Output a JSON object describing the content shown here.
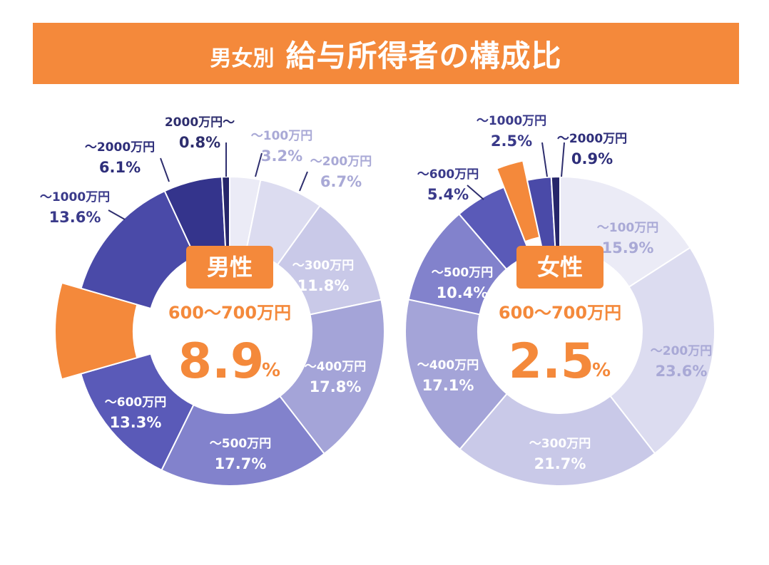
{
  "header": {
    "prefix": "男女別",
    "title": "給与所得者の構成比"
  },
  "colors": {
    "accent": "#f4893b"
  },
  "chart_data": [
    {
      "type": "pie",
      "center_label": "男性",
      "highlight_category": "600〜700万円",
      "highlight_value": "8.9",
      "highlight_unit": "%",
      "categories": [
        "〜100万円",
        "〜200万円",
        "〜300万円",
        "〜400万円",
        "〜500万円",
        "〜600万円",
        "600〜700万円",
        "〜1000万円",
        "〜2000万円",
        "2000万円〜"
      ],
      "values": [
        3.2,
        6.7,
        11.8,
        17.8,
        17.7,
        13.3,
        8.9,
        13.6,
        6.1,
        0.8
      ],
      "labels": [
        "〜100万円",
        "〜200万円",
        "〜300万円",
        "〜400万円",
        "〜500万円",
        "〜600万円",
        "",
        "〜1000万円",
        "〜2000万円",
        "2000万円〜"
      ],
      "value_labels": [
        "3.2%",
        "6.7%",
        "11.8%",
        "17.8%",
        "17.7%",
        "13.3%",
        "",
        "13.6%",
        "6.1%",
        "0.8%"
      ],
      "colors": [
        "#ebebf6",
        "#dcdcf0",
        "#c9c9e8",
        "#a4a4d8",
        "#8282cc",
        "#5a5ab8",
        "#f4893b",
        "#4a4aa8",
        "#34348c",
        "#26266a"
      ]
    },
    {
      "type": "pie",
      "center_label": "女性",
      "highlight_category": "600〜700万円",
      "highlight_value": "2.5",
      "highlight_unit": "%",
      "categories": [
        "〜100万円",
        "〜200万円",
        "〜300万円",
        "〜400万円",
        "〜500万円",
        "〜600万円",
        "600〜700万円",
        "〜1000万円",
        "〜2000万円"
      ],
      "values": [
        15.9,
        23.6,
        21.7,
        17.1,
        10.4,
        5.4,
        2.5,
        2.5,
        0.9
      ],
      "labels": [
        "〜100万円",
        "〜200万円",
        "〜300万円",
        "〜400万円",
        "〜500万円",
        "〜600万円",
        "",
        "〜1000万円",
        "〜2000万円"
      ],
      "value_labels": [
        "15.9%",
        "23.6%",
        "21.7%",
        "17.1%",
        "10.4%",
        "5.4%",
        "",
        "2.5%",
        "0.9%"
      ],
      "colors": [
        "#ebebf6",
        "#dcdcf0",
        "#c9c9e8",
        "#a4a4d8",
        "#8282cc",
        "#5a5ab8",
        "#f4893b",
        "#4a4aa8",
        "#26266a"
      ]
    }
  ]
}
